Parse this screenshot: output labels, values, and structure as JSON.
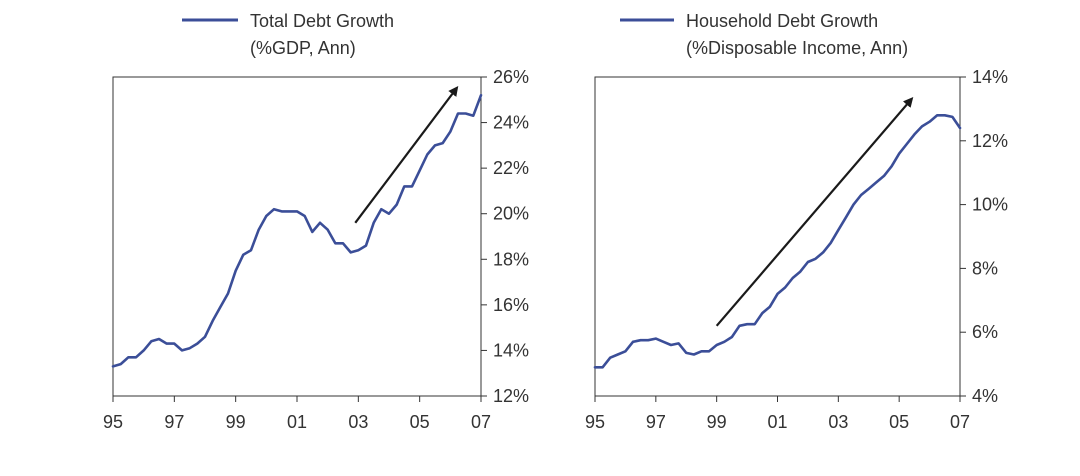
{
  "chart_data": [
    {
      "type": "line",
      "title": "",
      "legend": {
        "label_line1": "Total Debt Growth",
        "label_line2": "(%GDP, Ann)",
        "placement": "top"
      },
      "xlabel": "",
      "ylabel": "",
      "xlim": [
        95,
        107
      ],
      "ylim": [
        12,
        26
      ],
      "x_tick_labels": [
        "95",
        "97",
        "99",
        "01",
        "03",
        "05",
        "07"
      ],
      "x_tick_values": [
        95,
        97,
        99,
        101,
        103,
        105,
        107
      ],
      "y_tick_labels": [
        "26%",
        "24%",
        "22%",
        "20%",
        "18%",
        "16%",
        "14%",
        "12%"
      ],
      "y_tick_values": [
        26,
        24,
        22,
        20,
        18,
        16,
        14,
        12
      ],
      "y_axis_side": "right",
      "grid": false,
      "line_color": "#3b4e98",
      "annotation_arrow": {
        "from": [
          102.9,
          19.6
        ],
        "to": [
          106.2,
          25.5
        ],
        "color": "#1a1a1a"
      },
      "series": [
        {
          "name": "Total Debt Growth (%GDP, Ann)",
          "x": [
            95.0,
            95.25,
            95.5,
            95.75,
            96.0,
            96.25,
            96.5,
            96.75,
            97.0,
            97.25,
            97.5,
            97.75,
            98.0,
            98.25,
            98.5,
            98.75,
            99.0,
            99.25,
            99.5,
            99.75,
            100.0,
            100.25,
            100.5,
            100.75,
            101.0,
            101.25,
            101.5,
            101.75,
            102.0,
            102.25,
            102.5,
            102.75,
            103.0,
            103.25,
            103.5,
            103.75,
            104.0,
            104.25,
            104.5,
            104.75,
            105.0,
            105.25,
            105.5,
            105.75,
            106.0,
            106.25,
            106.5,
            106.75,
            107.0
          ],
          "y": [
            13.3,
            13.4,
            13.7,
            13.7,
            14.0,
            14.4,
            14.5,
            14.3,
            14.3,
            14.0,
            14.1,
            14.3,
            14.6,
            15.3,
            15.9,
            16.5,
            17.5,
            18.2,
            18.4,
            19.3,
            19.9,
            20.2,
            20.1,
            20.1,
            20.1,
            19.9,
            19.2,
            19.6,
            19.3,
            18.7,
            18.7,
            18.3,
            18.4,
            18.6,
            19.6,
            20.2,
            20.0,
            20.4,
            21.2,
            21.2,
            21.9,
            22.6,
            23.0,
            23.1,
            23.6,
            24.4,
            24.4,
            24.3,
            25.2
          ]
        }
      ]
    },
    {
      "type": "line",
      "title": "",
      "legend": {
        "label_line1": "Household Debt Growth",
        "label_line2": "(%Disposable Income, Ann)",
        "placement": "top"
      },
      "xlabel": "",
      "ylabel": "",
      "xlim": [
        95,
        107
      ],
      "ylim": [
        4,
        14
      ],
      "x_tick_labels": [
        "95",
        "97",
        "99",
        "01",
        "03",
        "05",
        "07"
      ],
      "x_tick_values": [
        95,
        97,
        99,
        101,
        103,
        105,
        107
      ],
      "y_tick_labels": [
        "14%",
        "12%",
        "10%",
        "8%",
        "6%",
        "4%"
      ],
      "y_tick_values": [
        14,
        12,
        10,
        8,
        6,
        4
      ],
      "y_axis_side": "right",
      "grid": false,
      "line_color": "#3b4e98",
      "annotation_arrow": {
        "from": [
          99.0,
          6.2
        ],
        "to": [
          105.4,
          13.3
        ],
        "color": "#1a1a1a"
      },
      "series": [
        {
          "name": "Household Debt Growth (%Disposable Income, Ann)",
          "x": [
            95.0,
            95.25,
            95.5,
            95.75,
            96.0,
            96.25,
            96.5,
            96.75,
            97.0,
            97.25,
            97.5,
            97.75,
            98.0,
            98.25,
            98.5,
            98.75,
            99.0,
            99.25,
            99.5,
            99.75,
            100.0,
            100.25,
            100.5,
            100.75,
            101.0,
            101.25,
            101.5,
            101.75,
            102.0,
            102.25,
            102.5,
            102.75,
            103.0,
            103.25,
            103.5,
            103.75,
            104.0,
            104.25,
            104.5,
            104.75,
            105.0,
            105.25,
            105.5,
            105.75,
            106.0,
            106.25,
            106.5,
            106.75,
            107.0
          ],
          "y": [
            4.9,
            4.9,
            5.2,
            5.3,
            5.4,
            5.7,
            5.75,
            5.75,
            5.8,
            5.7,
            5.6,
            5.65,
            5.35,
            5.3,
            5.4,
            5.4,
            5.6,
            5.7,
            5.85,
            6.2,
            6.25,
            6.25,
            6.6,
            6.8,
            7.2,
            7.4,
            7.7,
            7.9,
            8.2,
            8.3,
            8.5,
            8.8,
            9.2,
            9.6,
            10.0,
            10.3,
            10.5,
            10.7,
            10.9,
            11.2,
            11.6,
            11.9,
            12.2,
            12.45,
            12.6,
            12.8,
            12.8,
            12.75,
            12.4
          ]
        }
      ]
    }
  ]
}
